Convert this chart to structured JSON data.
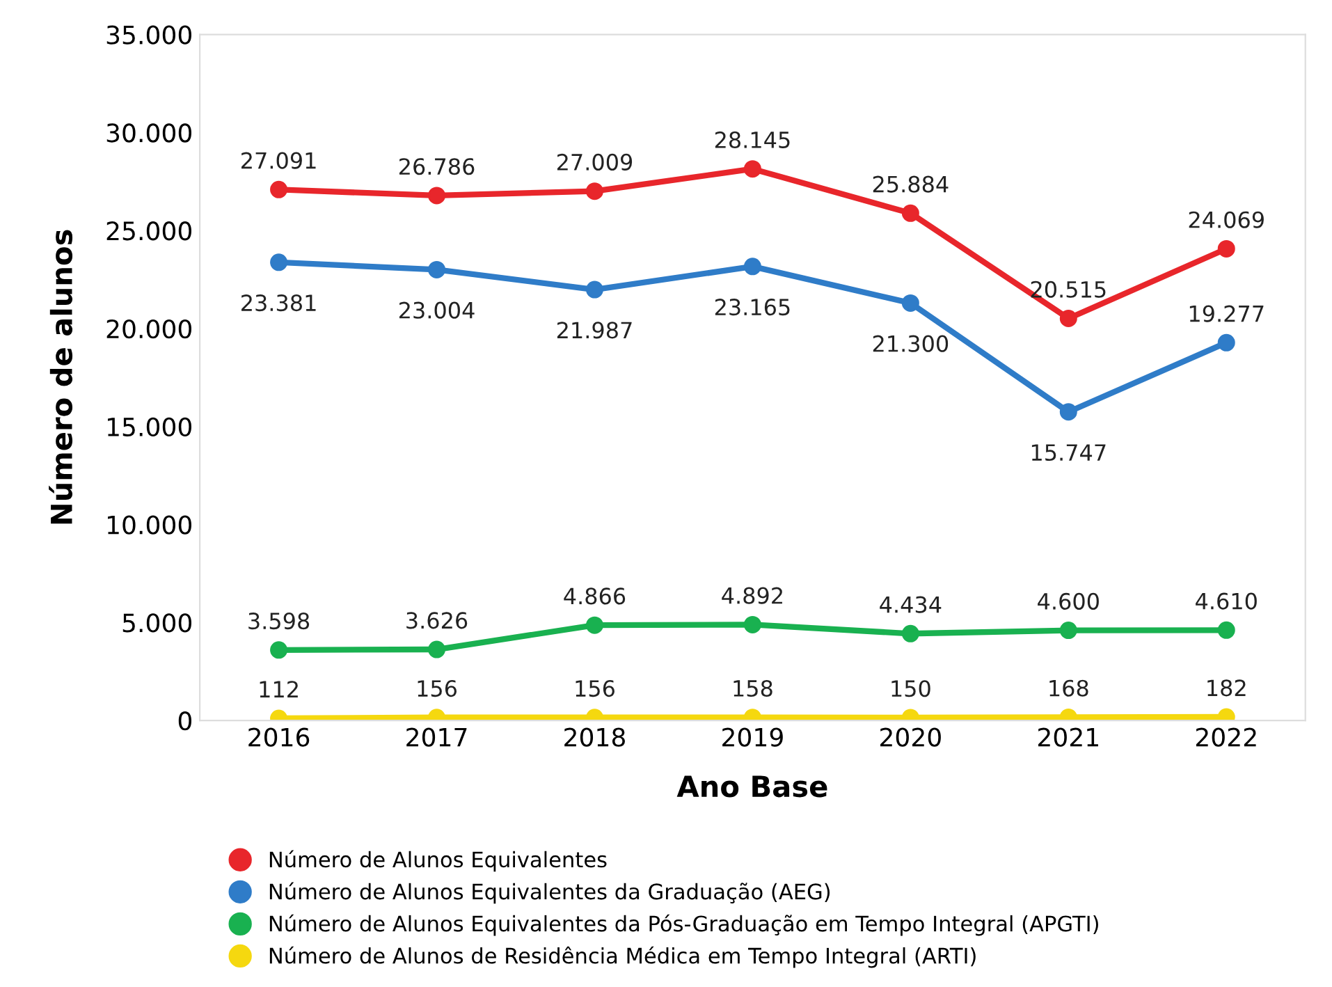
{
  "chart_data": {
    "type": "line",
    "xlabel": "Ano Base",
    "ylabel": "Número de alunos",
    "categories": [
      "2016",
      "2017",
      "2018",
      "2019",
      "2020",
      "2021",
      "2022"
    ],
    "series": [
      {
        "name": "Número de Alunos Equivalentes",
        "color": "#e8262b",
        "values": [
          27091,
          26786,
          27009,
          28145,
          25884,
          20515,
          24069
        ],
        "value_labels": [
          "27.091",
          "26.786",
          "27.009",
          "28.145",
          "25.884",
          "20.515",
          "24.069"
        ]
      },
      {
        "name": "Número de Alunos Equivalentes da Graduação (AEG)",
        "color": "#2f7cc8",
        "values": [
          23381,
          23004,
          21987,
          23165,
          21300,
          15747,
          19277
        ],
        "value_labels": [
          "23.381",
          "23.004",
          "21.987",
          "23.165",
          "21.300",
          "15.747",
          "19.277"
        ]
      },
      {
        "name": "Número de Alunos Equivalentes da Pós-Graduação em Tempo Integral (APGTI)",
        "color": "#19b150",
        "values": [
          3598,
          3626,
          4866,
          4892,
          4434,
          4600,
          4610
        ],
        "value_labels": [
          "3.598",
          "3.626",
          "4.866",
          "4.892",
          "4.434",
          "4.600",
          "4.610"
        ]
      },
      {
        "name": "Número de Alunos de Residência Médica em Tempo Integral (ARTI)",
        "color": "#f5d80f",
        "values": [
          112,
          156,
          156,
          158,
          150,
          168,
          182
        ],
        "value_labels": [
          "112",
          "156",
          "156",
          "158",
          "150",
          "168",
          "182"
        ]
      }
    ],
    "ylim": [
      0,
      35000
    ],
    "yticks": [
      {
        "value": 0,
        "label": "0"
      },
      {
        "value": 5000,
        "label": "5.000"
      },
      {
        "value": 10000,
        "label": "10.000"
      },
      {
        "value": 15000,
        "label": "15.000"
      },
      {
        "value": 20000,
        "label": "20.000"
      },
      {
        "value": 25000,
        "label": "25.000"
      },
      {
        "value": 30000,
        "label": "30.000"
      },
      {
        "value": 35000,
        "label": "35.000"
      }
    ],
    "grid": false,
    "legend": "bottom",
    "marker": "circle",
    "line_style": "solid"
  }
}
